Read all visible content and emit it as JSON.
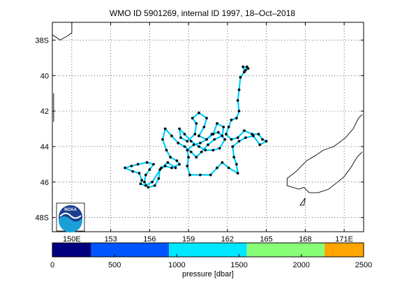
{
  "title": "WMO ID 5901269, internal ID 1997, 18–Oct–2018",
  "map": {
    "lon_range": [
      148.5,
      172.5
    ],
    "lat_range": [
      -48.8,
      -37.0
    ],
    "x_ticks": [
      {
        "value": 150,
        "label": "150E"
      },
      {
        "value": 153,
        "label": "153"
      },
      {
        "value": 156,
        "label": "156"
      },
      {
        "value": 159,
        "label": "159"
      },
      {
        "value": 162,
        "label": "162"
      },
      {
        "value": 165,
        "label": "165"
      },
      {
        "value": 168,
        "label": "168"
      },
      {
        "value": 171,
        "label": "171E"
      }
    ],
    "y_ticks": [
      {
        "value": -38,
        "label": "38S"
      },
      {
        "value": -40,
        "label": "40"
      },
      {
        "value": -42,
        "label": "42"
      },
      {
        "value": -44,
        "label": "44"
      },
      {
        "value": -46,
        "label": "46"
      },
      {
        "value": -48,
        "label": "48S"
      }
    ],
    "grid": "dotted",
    "coastlines": [
      {
        "name": "tasmania-coast",
        "points": [
          [
            148.5,
            -37.7
          ],
          [
            149.1,
            -38.0
          ],
          [
            149.6,
            -37.8
          ],
          [
            150.0,
            -37.6
          ],
          [
            150.0,
            -37.0
          ]
        ]
      },
      {
        "name": "nz-south-island-west",
        "points": [
          [
            172.4,
            -42.2
          ],
          [
            172.1,
            -42.4
          ],
          [
            171.7,
            -43.0
          ],
          [
            171.1,
            -43.5
          ],
          [
            170.2,
            -44.0
          ],
          [
            169.4,
            -44.2
          ],
          [
            168.8,
            -44.5
          ],
          [
            168.1,
            -44.8
          ],
          [
            167.3,
            -45.4
          ],
          [
            166.6,
            -45.8
          ],
          [
            166.6,
            -46.2
          ],
          [
            167.5,
            -46.4
          ],
          [
            167.9,
            -46.3
          ]
        ]
      },
      {
        "name": "nz-south-island-south",
        "points": [
          [
            172.4,
            -44.3
          ],
          [
            172.0,
            -44.6
          ],
          [
            171.5,
            -45.2
          ],
          [
            171.0,
            -45.7
          ],
          [
            170.5,
            -46.0
          ],
          [
            169.8,
            -46.4
          ],
          [
            169.0,
            -46.6
          ],
          [
            168.3,
            -46.6
          ],
          [
            167.9,
            -46.3
          ]
        ]
      },
      {
        "name": "stewart-island",
        "points": [
          [
            168.0,
            -46.9
          ],
          [
            167.6,
            -47.3
          ],
          [
            167.9,
            -47.3
          ],
          [
            168.0,
            -46.9
          ]
        ]
      },
      {
        "name": "west-edge-stub",
        "points": [
          [
            148.6,
            -41.0
          ],
          [
            148.6,
            -42.6
          ]
        ]
      }
    ],
    "float_track": [
      [
        163.5,
        -39.5
      ],
      [
        163.4,
        -39.7
      ],
      [
        163.6,
        -39.6
      ],
      [
        163.2,
        -39.5
      ],
      [
        163.3,
        -39.8
      ],
      [
        163.0,
        -40.1
      ],
      [
        162.9,
        -40.8
      ],
      [
        162.8,
        -41.4
      ],
      [
        162.9,
        -42.0
      ],
      [
        162.7,
        -42.4
      ],
      [
        162.3,
        -42.5
      ],
      [
        162.1,
        -42.9
      ],
      [
        161.9,
        -43.3
      ],
      [
        162.3,
        -43.6
      ],
      [
        162.8,
        -43.5
      ],
      [
        163.3,
        -43.1
      ],
      [
        163.9,
        -43.3
      ],
      [
        164.4,
        -43.3
      ],
      [
        164.7,
        -43.6
      ],
      [
        165.0,
        -43.7
      ],
      [
        164.5,
        -43.9
      ],
      [
        164.0,
        -43.4
      ],
      [
        163.4,
        -43.5
      ],
      [
        162.9,
        -43.7
      ],
      [
        162.4,
        -44.0
      ],
      [
        162.5,
        -44.6
      ],
      [
        162.7,
        -45.0
      ],
      [
        162.8,
        -45.5
      ],
      [
        162.1,
        -45.2
      ],
      [
        161.6,
        -44.9
      ],
      [
        161.2,
        -45.2
      ],
      [
        160.7,
        -45.6
      ],
      [
        159.9,
        -45.6
      ],
      [
        159.1,
        -45.6
      ],
      [
        158.9,
        -45.1
      ],
      [
        159.0,
        -44.6
      ],
      [
        158.9,
        -44.2
      ],
      [
        159.4,
        -43.9
      ],
      [
        159.9,
        -43.8
      ],
      [
        160.4,
        -43.6
      ],
      [
        160.8,
        -43.3
      ],
      [
        161.3,
        -43.2
      ],
      [
        161.8,
        -43.6
      ],
      [
        161.4,
        -44.1
      ],
      [
        160.9,
        -44.2
      ],
      [
        160.3,
        -44.2
      ],
      [
        159.8,
        -44.0
      ],
      [
        159.2,
        -43.7
      ],
      [
        158.7,
        -43.3
      ],
      [
        158.3,
        -43.0
      ],
      [
        158.4,
        -43.5
      ],
      [
        158.9,
        -43.7
      ],
      [
        159.5,
        -43.3
      ],
      [
        159.6,
        -42.7
      ],
      [
        159.3,
        -42.4
      ],
      [
        159.8,
        -42.1
      ],
      [
        160.4,
        -42.4
      ],
      [
        160.2,
        -42.9
      ],
      [
        159.8,
        -43.4
      ],
      [
        160.4,
        -43.6
      ],
      [
        160.9,
        -43.3
      ],
      [
        161.2,
        -42.7
      ],
      [
        161.7,
        -42.9
      ],
      [
        161.6,
        -43.4
      ],
      [
        161.0,
        -43.6
      ],
      [
        160.5,
        -43.9
      ],
      [
        160.0,
        -44.3
      ],
      [
        159.6,
        -44.6
      ],
      [
        159.2,
        -44.3
      ],
      [
        158.7,
        -44.0
      ],
      [
        158.2,
        -43.8
      ],
      [
        157.7,
        -43.4
      ],
      [
        157.2,
        -43.0
      ],
      [
        157.0,
        -43.6
      ],
      [
        157.3,
        -44.2
      ],
      [
        157.6,
        -44.6
      ],
      [
        158.1,
        -44.8
      ],
      [
        158.3,
        -45.0
      ],
      [
        157.7,
        -45.2
      ],
      [
        157.2,
        -45.1
      ],
      [
        156.8,
        -45.3
      ],
      [
        156.7,
        -45.8
      ],
      [
        156.4,
        -46.2
      ],
      [
        155.9,
        -46.3
      ],
      [
        155.6,
        -46.0
      ],
      [
        155.7,
        -45.6
      ],
      [
        156.0,
        -45.3
      ],
      [
        156.3,
        -45.0
      ],
      [
        155.8,
        -44.9
      ],
      [
        155.1,
        -45.0
      ],
      [
        154.6,
        -45.1
      ],
      [
        154.1,
        -45.2
      ],
      [
        154.7,
        -45.4
      ],
      [
        155.2,
        -45.5
      ],
      [
        155.4,
        -45.9
      ],
      [
        155.3,
        -46.1
      ],
      [
        155.7,
        -46.2
      ],
      [
        156.2,
        -46.0
      ],
      [
        156.9,
        -45.2
      ],
      [
        157.4,
        -44.9
      ],
      [
        158.0,
        -45.2
      ]
    ]
  },
  "logo": {
    "text": "NOAA",
    "colors": {
      "top": "#1a3d8f",
      "bottom": "#1aa0d8",
      "wave": "#ffffff"
    }
  },
  "colorbar": {
    "label": "pressure [dbar]",
    "range": [
      0,
      2500
    ],
    "ticks": [
      "0",
      "500",
      "1000",
      "1500",
      "2000",
      "2500"
    ],
    "segments": [
      {
        "from": 0,
        "to": 312,
        "color": "#00007f"
      },
      {
        "from": 312,
        "to": 937,
        "color": "#0055ff"
      },
      {
        "from": 937,
        "to": 1562,
        "color": "#00e8ff"
      },
      {
        "from": 1562,
        "to": 2187,
        "color": "#88ff77"
      },
      {
        "from": 2187,
        "to": 2500,
        "color": "#ffa500"
      }
    ]
  },
  "colors": {
    "track_line": "#00e8ff",
    "track_dot": "#0a0a0a",
    "grid": "#000000",
    "coast": "#000000"
  }
}
